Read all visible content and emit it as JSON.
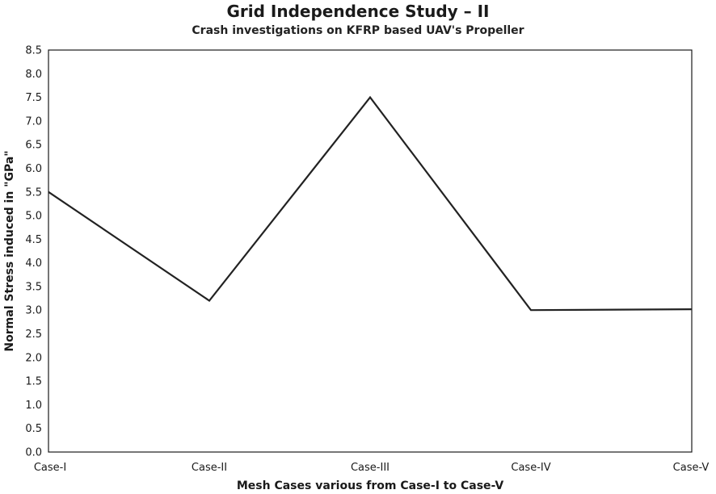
{
  "chart_data": {
    "type": "line",
    "title": "Grid Independence Study – II",
    "subtitle": "Crash investigations on KFRP based UAV's Propeller",
    "xlabel": "Mesh Cases various from Case-I to Case-V",
    "ylabel": "Normal Stress induced in \"GPa\"",
    "categories": [
      "Case-I",
      "Case-II",
      "Case-III",
      "Case-IV",
      "Case-V"
    ],
    "values": [
      5.5,
      3.2,
      7.5,
      3.0,
      3.02
    ],
    "ylim": [
      0,
      8.5
    ],
    "yticks": [
      "0.0",
      "0.5",
      "1.0",
      "1.5",
      "2.0",
      "2.5",
      "3.0",
      "3.5",
      "4.0",
      "4.5",
      "5.0",
      "5.5",
      "6.0",
      "6.5",
      "7.0",
      "7.5",
      "8.0",
      "8.5"
    ],
    "grid": false,
    "line_color": "#222222"
  }
}
